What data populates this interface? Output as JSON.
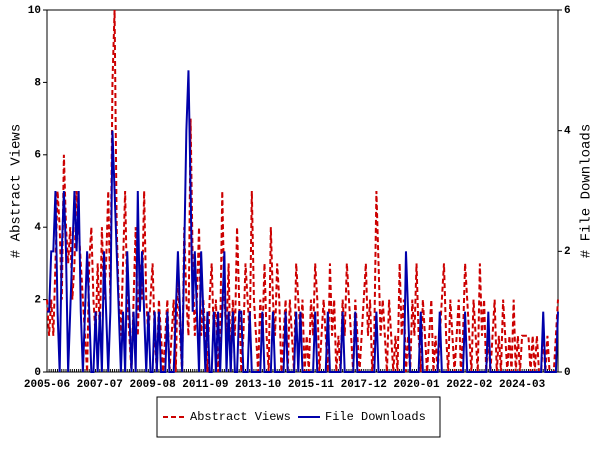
{
  "chart_data": {
    "type": "line",
    "y_label": "# Abstract Views",
    "y2_label": "# File Downloads",
    "categories": [
      "2005-06",
      null,
      null,
      null,
      null,
      null,
      null,
      null,
      null,
      null,
      null,
      null,
      null,
      null,
      null,
      null,
      null,
      null,
      null,
      null,
      null,
      null,
      null,
      null,
      null,
      "2007-07",
      null,
      null,
      null,
      null,
      null,
      null,
      null,
      null,
      null,
      null,
      null,
      null,
      null,
      null,
      null,
      null,
      null,
      null,
      null,
      null,
      null,
      null,
      null,
      null,
      "2009-08",
      null,
      null,
      null,
      null,
      null,
      null,
      null,
      null,
      null,
      null,
      null,
      null,
      null,
      null,
      null,
      null,
      null,
      null,
      null,
      null,
      null,
      null,
      null,
      null,
      "2011-09",
      null,
      null,
      null,
      null,
      null,
      null,
      null,
      null,
      null,
      null,
      null,
      null,
      null,
      null,
      null,
      null,
      null,
      null,
      null,
      null,
      null,
      null,
      null,
      null,
      "2013-10",
      null,
      null,
      null,
      null,
      null,
      null,
      null,
      null,
      null,
      null,
      null,
      null,
      null,
      null,
      null,
      null,
      null,
      null,
      null,
      null,
      null,
      null,
      null,
      null,
      "2015-11",
      null,
      null,
      null,
      null,
      null,
      null,
      null,
      null,
      null,
      null,
      null,
      null,
      null,
      null,
      null,
      null,
      null,
      null,
      null,
      null,
      null,
      null,
      null,
      null,
      "2017-12",
      null,
      null,
      null,
      null,
      null,
      null,
      null,
      null,
      null,
      null,
      null,
      null,
      null,
      null,
      null,
      null,
      null,
      null,
      null,
      null,
      null,
      null,
      null,
      null,
      "2020-01",
      null,
      null,
      null,
      null,
      null,
      null,
      null,
      null,
      null,
      null,
      null,
      null,
      null,
      null,
      null,
      null,
      null,
      null,
      null,
      null,
      null,
      null,
      null,
      null,
      "2022-02",
      null,
      null,
      null,
      null,
      null,
      null,
      null,
      null,
      null,
      null,
      null,
      null,
      null,
      null,
      null,
      null,
      null,
      null,
      null,
      null,
      null,
      null,
      null,
      null,
      "2024-03",
      null,
      null,
      null,
      null,
      null,
      null,
      null,
      null,
      null,
      null,
      null,
      null,
      null,
      null,
      null,
      null,
      null
    ],
    "series": [
      {
        "name": "Abstract Views",
        "color": "#cc0000",
        "dashed": true,
        "values": [
          2,
          1,
          2,
          1,
          3,
          5,
          4,
          2,
          6,
          4,
          3,
          4,
          2,
          3,
          5,
          4,
          3,
          2,
          1,
          0,
          3,
          4,
          2,
          1,
          3,
          1,
          4,
          2,
          3,
          5,
          2,
          8,
          10,
          4,
          2,
          1,
          3,
          5,
          2,
          1,
          0,
          2,
          4,
          1,
          3,
          2,
          5,
          2,
          1,
          2,
          3,
          1,
          0,
          2,
          1,
          0,
          1,
          2,
          0,
          1,
          2,
          0,
          3,
          1,
          0,
          4,
          2,
          1,
          7,
          3,
          1,
          2,
          4,
          1,
          2,
          1,
          0,
          2,
          3,
          1,
          2,
          0,
          1,
          5,
          2,
          1,
          3,
          0,
          2,
          1,
          4,
          2,
          0,
          1,
          3,
          2,
          1,
          5,
          2,
          1,
          0,
          2,
          1,
          3,
          1,
          0,
          4,
          2,
          1,
          3,
          2,
          0,
          1,
          2,
          0,
          2,
          1,
          0,
          3,
          2,
          1,
          2,
          0,
          1,
          0,
          2,
          1,
          3,
          2,
          0,
          1,
          2,
          1,
          0,
          3,
          1,
          2,
          0,
          1,
          0,
          2,
          1,
          3,
          2,
          1,
          0,
          2,
          1,
          0,
          1,
          2,
          3,
          1,
          2,
          0,
          1,
          5,
          3,
          1,
          2,
          1,
          0,
          2,
          1,
          0,
          1,
          0,
          3,
          1,
          2,
          0,
          1,
          0,
          2,
          1,
          3,
          1,
          0,
          2,
          1,
          0,
          1,
          2,
          0,
          1,
          0,
          1,
          2,
          3,
          1,
          0,
          2,
          1,
          0,
          1,
          2,
          0,
          1,
          3,
          2,
          1,
          0,
          2,
          1,
          0,
          3,
          1,
          2,
          0,
          1,
          0,
          1,
          2,
          0,
          1,
          0,
          2,
          1,
          0,
          1,
          0,
          2,
          0,
          1,
          0,
          1,
          1,
          1,
          1,
          0,
          1,
          0,
          1,
          0,
          0,
          1,
          0,
          1,
          0,
          0,
          0,
          1,
          2
        ]
      },
      {
        "name": "File Downloads",
        "color": "#0000aa",
        "dashed": false,
        "axis": "y2",
        "values": [
          1,
          1,
          2,
          2,
          3,
          1,
          0,
          2,
          3,
          2,
          0,
          1,
          2,
          3,
          2,
          3,
          1,
          0,
          1,
          2,
          1,
          0,
          0,
          1,
          0,
          1,
          0,
          2,
          1,
          0,
          1,
          4,
          3,
          2,
          1,
          0,
          1,
          0,
          2,
          1,
          0,
          1,
          0,
          3,
          1,
          2,
          1,
          0,
          1,
          0,
          0,
          1,
          0,
          1,
          0,
          0,
          0,
          1,
          0,
          0,
          0,
          1,
          2,
          1,
          0,
          2,
          4,
          5,
          3,
          1,
          2,
          1,
          0,
          2,
          1,
          0,
          1,
          0,
          0,
          1,
          0,
          1,
          0,
          1,
          2,
          0,
          1,
          0,
          1,
          0,
          0,
          1,
          1,
          0,
          0,
          0,
          1,
          0,
          0,
          0,
          0,
          0,
          1,
          0,
          0,
          0,
          0,
          1,
          0,
          0,
          0,
          0,
          0,
          1,
          0,
          0,
          0,
          0,
          1,
          0,
          1,
          0,
          0,
          0,
          0,
          0,
          0,
          1,
          0,
          0,
          0,
          0,
          0,
          1,
          0,
          0,
          0,
          0,
          0,
          0,
          1,
          0,
          0,
          0,
          0,
          0,
          1,
          0,
          0,
          0,
          0,
          0,
          0,
          0,
          0,
          0,
          1,
          0,
          0,
          0,
          0,
          0,
          0,
          0,
          0,
          0,
          0,
          0,
          0,
          0,
          2,
          1,
          0,
          0,
          0,
          0,
          0,
          1,
          0,
          0,
          0,
          0,
          0,
          0,
          0,
          0,
          1,
          0,
          0,
          0,
          0,
          0,
          0,
          0,
          0,
          0,
          0,
          0,
          1,
          0,
          0,
          0,
          0,
          0,
          0,
          0,
          0,
          0,
          0,
          1,
          0,
          0,
          0,
          0,
          0,
          0,
          0,
          0,
          0,
          0,
          0,
          0,
          0,
          0,
          0,
          0,
          0,
          0,
          0,
          0,
          0,
          0,
          0,
          0,
          0,
          1,
          0,
          0,
          0,
          0,
          0,
          0,
          1
        ]
      }
    ],
    "ylim": [
      0,
      10
    ],
    "yticks": [
      0,
      2,
      4,
      6,
      8,
      10
    ],
    "y2lim": [
      0,
      6
    ],
    "y2ticks": [
      0,
      2,
      4,
      6
    ]
  }
}
